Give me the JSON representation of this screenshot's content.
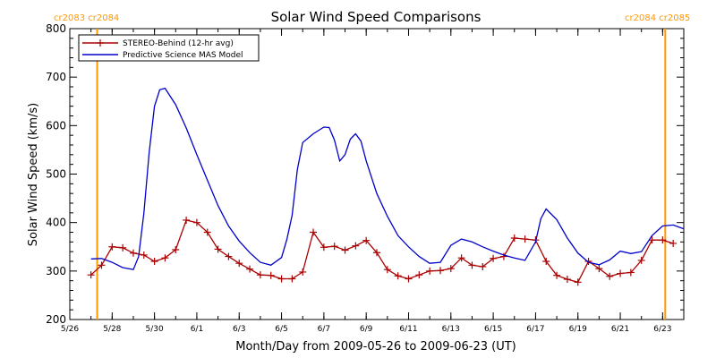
{
  "colors": {
    "stereo": "#aa0000",
    "model": "#0000cc",
    "carrington": "#ff9900",
    "axis": "#000000"
  },
  "carrington_labels": {
    "left": "cr2083 cr2084",
    "right": "cr2084 cr2085"
  },
  "chart_data": {
    "type": "line",
    "title": "Solar Wind Speed Comparisons",
    "xlabel": "Month/Day from 2009-05-26 to 2009-06-23 (UT)",
    "ylabel": "Solar Wind Speed (km/s)",
    "xlim": [
      "2009-05-26",
      "2009-06-24"
    ],
    "ylim": [
      200,
      800
    ],
    "yticks": [
      200,
      300,
      400,
      500,
      600,
      700,
      800
    ],
    "xticks": [
      {
        "date": "2009-05-26",
        "label": "5/26"
      },
      {
        "date": "2009-05-28",
        "label": "5/28"
      },
      {
        "date": "2009-05-30",
        "label": "5/30"
      },
      {
        "date": "2009-06-01",
        "label": "6/1"
      },
      {
        "date": "2009-06-03",
        "label": "6/3"
      },
      {
        "date": "2009-06-05",
        "label": "6/5"
      },
      {
        "date": "2009-06-07",
        "label": "6/7"
      },
      {
        "date": "2009-06-09",
        "label": "6/9"
      },
      {
        "date": "2009-06-11",
        "label": "6/11"
      },
      {
        "date": "2009-06-13",
        "label": "6/13"
      },
      {
        "date": "2009-06-15",
        "label": "6/15"
      },
      {
        "date": "2009-06-17",
        "label": "6/17"
      },
      {
        "date": "2009-06-19",
        "label": "6/19"
      },
      {
        "date": "2009-06-21",
        "label": "6/21"
      },
      {
        "date": "2009-06-23",
        "label": "6/23"
      }
    ],
    "carrington_boundaries": [
      "2009-05-27 07:00",
      "2009-06-23 03:00"
    ],
    "legend_position": "top-left",
    "grid": false,
    "series": [
      {
        "name": "STEREO-Behind (12-hr avg)",
        "marker": "plus",
        "points": [
          [
            "2009-05-27 00:00",
            292
          ],
          [
            "2009-05-27 12:00",
            312
          ],
          [
            "2009-05-28 00:00",
            350
          ],
          [
            "2009-05-28 12:00",
            348
          ],
          [
            "2009-05-29 00:00",
            337
          ],
          [
            "2009-05-29 12:00",
            333
          ],
          [
            "2009-05-30 00:00",
            320
          ],
          [
            "2009-05-30 12:00",
            327
          ],
          [
            "2009-05-31 00:00",
            344
          ],
          [
            "2009-05-31 12:00",
            405
          ],
          [
            "2009-06-01 00:00",
            400
          ],
          [
            "2009-06-01 12:00",
            380
          ],
          [
            "2009-06-02 00:00",
            345
          ],
          [
            "2009-06-02 12:00",
            330
          ],
          [
            "2009-06-03 00:00",
            316
          ],
          [
            "2009-06-03 12:00",
            304
          ],
          [
            "2009-06-04 00:00",
            292
          ],
          [
            "2009-06-04 12:00",
            291
          ],
          [
            "2009-06-05 00:00",
            284
          ],
          [
            "2009-06-05 12:00",
            284
          ],
          [
            "2009-06-06 00:00",
            298
          ],
          [
            "2009-06-06 12:00",
            380
          ],
          [
            "2009-06-07 00:00",
            349
          ],
          [
            "2009-06-07 12:00",
            351
          ],
          [
            "2009-06-08 00:00",
            343
          ],
          [
            "2009-06-08 12:00",
            352
          ],
          [
            "2009-06-09 00:00",
            363
          ],
          [
            "2009-06-09 12:00",
            338
          ],
          [
            "2009-06-10 00:00",
            303
          ],
          [
            "2009-06-10 12:00",
            290
          ],
          [
            "2009-06-11 00:00",
            284
          ],
          [
            "2009-06-11 12:00",
            292
          ],
          [
            "2009-06-12 00:00",
            300
          ],
          [
            "2009-06-12 12:00",
            301
          ],
          [
            "2009-06-13 00:00",
            305
          ],
          [
            "2009-06-13 12:00",
            327
          ],
          [
            "2009-06-14 00:00",
            312
          ],
          [
            "2009-06-14 12:00",
            309
          ],
          [
            "2009-06-15 00:00",
            326
          ],
          [
            "2009-06-15 12:00",
            330
          ],
          [
            "2009-06-16 00:00",
            368
          ],
          [
            "2009-06-16 12:00",
            366
          ],
          [
            "2009-06-17 00:00",
            364
          ],
          [
            "2009-06-17 12:00",
            320
          ],
          [
            "2009-06-18 00:00",
            291
          ],
          [
            "2009-06-18 12:00",
            283
          ],
          [
            "2009-06-19 00:00",
            277
          ],
          [
            "2009-06-19 12:00",
            320
          ],
          [
            "2009-06-20 00:00",
            305
          ],
          [
            "2009-06-20 12:00",
            289
          ],
          [
            "2009-06-21 00:00",
            295
          ],
          [
            "2009-06-21 12:00",
            297
          ],
          [
            "2009-06-22 00:00",
            322
          ],
          [
            "2009-06-22 12:00",
            364
          ],
          [
            "2009-06-23 00:00",
            364
          ],
          [
            "2009-06-23 12:00",
            357
          ]
        ]
      },
      {
        "name": "Predictive Science MAS Model",
        "marker": "none",
        "points": [
          [
            "2009-05-27 00:00",
            325
          ],
          [
            "2009-05-27 12:00",
            326
          ],
          [
            "2009-05-28 00:00",
            318
          ],
          [
            "2009-05-28 12:00",
            307
          ],
          [
            "2009-05-29 00:00",
            303
          ],
          [
            "2009-05-29 06:00",
            330
          ],
          [
            "2009-05-29 12:00",
            420
          ],
          [
            "2009-05-29 18:00",
            545
          ],
          [
            "2009-05-30 00:00",
            640
          ],
          [
            "2009-05-30 06:00",
            674
          ],
          [
            "2009-05-30 12:00",
            677
          ],
          [
            "2009-05-31 00:00",
            643
          ],
          [
            "2009-05-31 12:00",
            595
          ],
          [
            "2009-06-01 00:00",
            540
          ],
          [
            "2009-06-01 12:00",
            487
          ],
          [
            "2009-06-02 00:00",
            435
          ],
          [
            "2009-06-02 12:00",
            393
          ],
          [
            "2009-06-03 00:00",
            362
          ],
          [
            "2009-06-03 12:00",
            338
          ],
          [
            "2009-06-04 00:00",
            318
          ],
          [
            "2009-06-04 12:00",
            312
          ],
          [
            "2009-06-05 00:00",
            328
          ],
          [
            "2009-06-05 06:00",
            365
          ],
          [
            "2009-06-05 12:00",
            415
          ],
          [
            "2009-06-05 18:00",
            510
          ],
          [
            "2009-06-06 00:00",
            565
          ],
          [
            "2009-06-06 12:00",
            583
          ],
          [
            "2009-06-07 00:00",
            597
          ],
          [
            "2009-06-07 06:00",
            596
          ],
          [
            "2009-06-07 12:00",
            570
          ],
          [
            "2009-06-07 18:00",
            527
          ],
          [
            "2009-06-08 00:00",
            540
          ],
          [
            "2009-06-08 06:00",
            572
          ],
          [
            "2009-06-08 12:00",
            583
          ],
          [
            "2009-06-08 18:00",
            568
          ],
          [
            "2009-06-09 00:00",
            527
          ],
          [
            "2009-06-09 12:00",
            460
          ],
          [
            "2009-06-10 00:00",
            413
          ],
          [
            "2009-06-10 12:00",
            373
          ],
          [
            "2009-06-11 00:00",
            350
          ],
          [
            "2009-06-11 12:00",
            330
          ],
          [
            "2009-06-12 00:00",
            316
          ],
          [
            "2009-06-12 12:00",
            318
          ],
          [
            "2009-06-13 00:00",
            353
          ],
          [
            "2009-06-13 12:00",
            366
          ],
          [
            "2009-06-14 00:00",
            360
          ],
          [
            "2009-06-14 12:00",
            350
          ],
          [
            "2009-06-15 00:00",
            341
          ],
          [
            "2009-06-15 12:00",
            333
          ],
          [
            "2009-06-16 00:00",
            327
          ],
          [
            "2009-06-16 12:00",
            322
          ],
          [
            "2009-06-17 00:00",
            360
          ],
          [
            "2009-06-17 06:00",
            408
          ],
          [
            "2009-06-17 12:00",
            428
          ],
          [
            "2009-06-18 00:00",
            406
          ],
          [
            "2009-06-18 12:00",
            368
          ],
          [
            "2009-06-19 00:00",
            337
          ],
          [
            "2009-06-19 12:00",
            318
          ],
          [
            "2009-06-20 00:00",
            313
          ],
          [
            "2009-06-20 12:00",
            323
          ],
          [
            "2009-06-21 00:00",
            341
          ],
          [
            "2009-06-21 12:00",
            336
          ],
          [
            "2009-06-22 00:00",
            340
          ],
          [
            "2009-06-22 12:00",
            373
          ],
          [
            "2009-06-23 00:00",
            393
          ],
          [
            "2009-06-23 12:00",
            395
          ],
          [
            "2009-06-24 00:00",
            387
          ]
        ]
      }
    ]
  }
}
